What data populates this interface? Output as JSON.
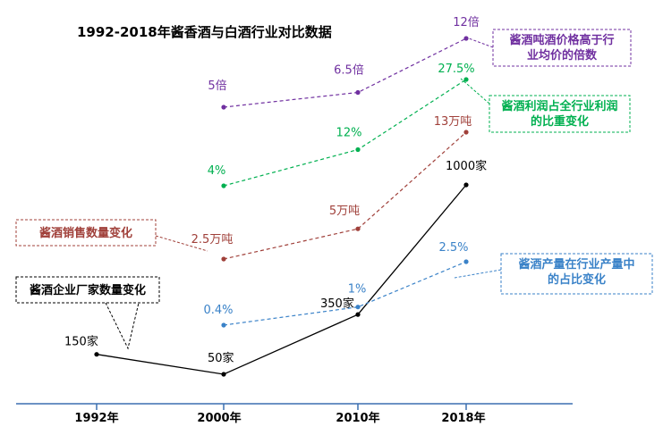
{
  "chart_data": {
    "type": "line",
    "title": "1992-2018年酱香酒与白酒行业对比数据",
    "categories": [
      "1992年",
      "2000年",
      "2010年",
      "2018年"
    ],
    "xlabel": "",
    "ylabel": "",
    "grid": false,
    "series": [
      {
        "name": "酱酒吨酒价格高于行业均价的倍数",
        "color": "#7030a0",
        "dash": true,
        "values": [
          null,
          5,
          6.5,
          12
        ],
        "labels": [
          null,
          "5倍",
          "6.5倍",
          "12倍"
        ]
      },
      {
        "name": "酱酒利润占全行业利润的比重变化",
        "color": "#00b050",
        "dash": true,
        "values": [
          null,
          4,
          12,
          27.5
        ],
        "labels": [
          null,
          "4%",
          "12%",
          "27.5%"
        ]
      },
      {
        "name": "酱酒销售数量变化",
        "color": "#a0403a",
        "dash": true,
        "values": [
          null,
          2.5,
          5,
          13
        ],
        "labels": [
          null,
          "2.5万吨",
          "5万吨",
          "13万吨"
        ]
      },
      {
        "name": "酱酒企业厂家数量变化",
        "color": "#000000",
        "dash": false,
        "values": [
          150,
          50,
          350,
          1000
        ],
        "labels": [
          "150家",
          "50家",
          "350家",
          "1000家"
        ]
      },
      {
        "name": "酱酒产量在行业产量中的占比变化",
        "color": "#3a82c8",
        "dash": true,
        "values": [
          null,
          0.4,
          1,
          2.5
        ],
        "labels": [
          null,
          "0.4%",
          "1%",
          "2.5%"
        ]
      }
    ]
  }
}
